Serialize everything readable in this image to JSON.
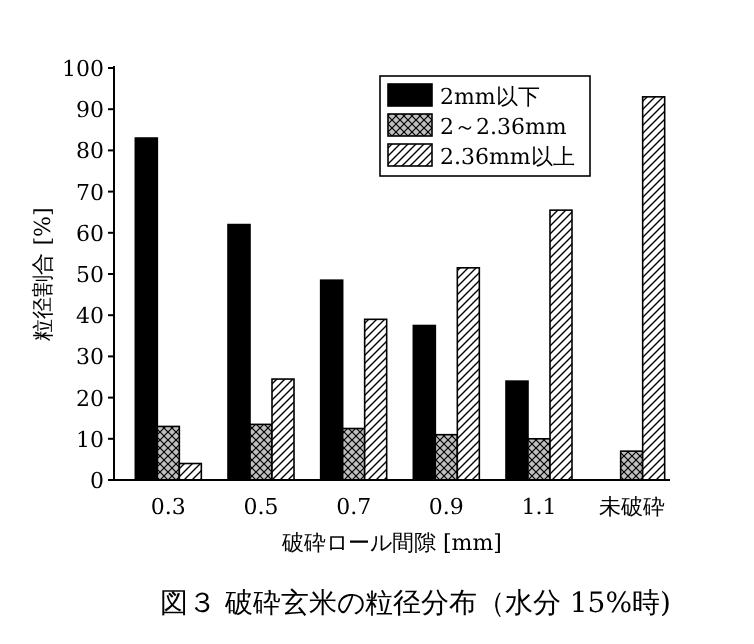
{
  "chart_data": {
    "type": "bar",
    "xlabel": "破砕ロール間隙 [mm]",
    "ylabel": "粒径割合 [%]",
    "categories": [
      "0.3",
      "0.5",
      "0.7",
      "0.9",
      "1.1",
      "未破砕"
    ],
    "series": [
      {
        "name": "2mm以下",
        "color": "#000000",
        "values": [
          83,
          62,
          48.5,
          37.5,
          24,
          null
        ]
      },
      {
        "name": "2～2.36mm",
        "color": "#000000",
        "values": [
          13,
          13.5,
          12.5,
          11,
          10,
          7
        ]
      },
      {
        "name": "2.36mm以上",
        "color": "#000000",
        "values": [
          4,
          24.5,
          39,
          51.5,
          65.5,
          93
        ]
      }
    ],
    "ylim": [
      0,
      100
    ],
    "yticks": [
      0,
      10,
      20,
      30,
      40,
      50,
      60,
      70,
      80,
      90,
      100
    ],
    "legend": "top right",
    "grid": false,
    "annotations": [
      "図３ 破砕玄米の粒径分布（水分 15%時)"
    ]
  }
}
